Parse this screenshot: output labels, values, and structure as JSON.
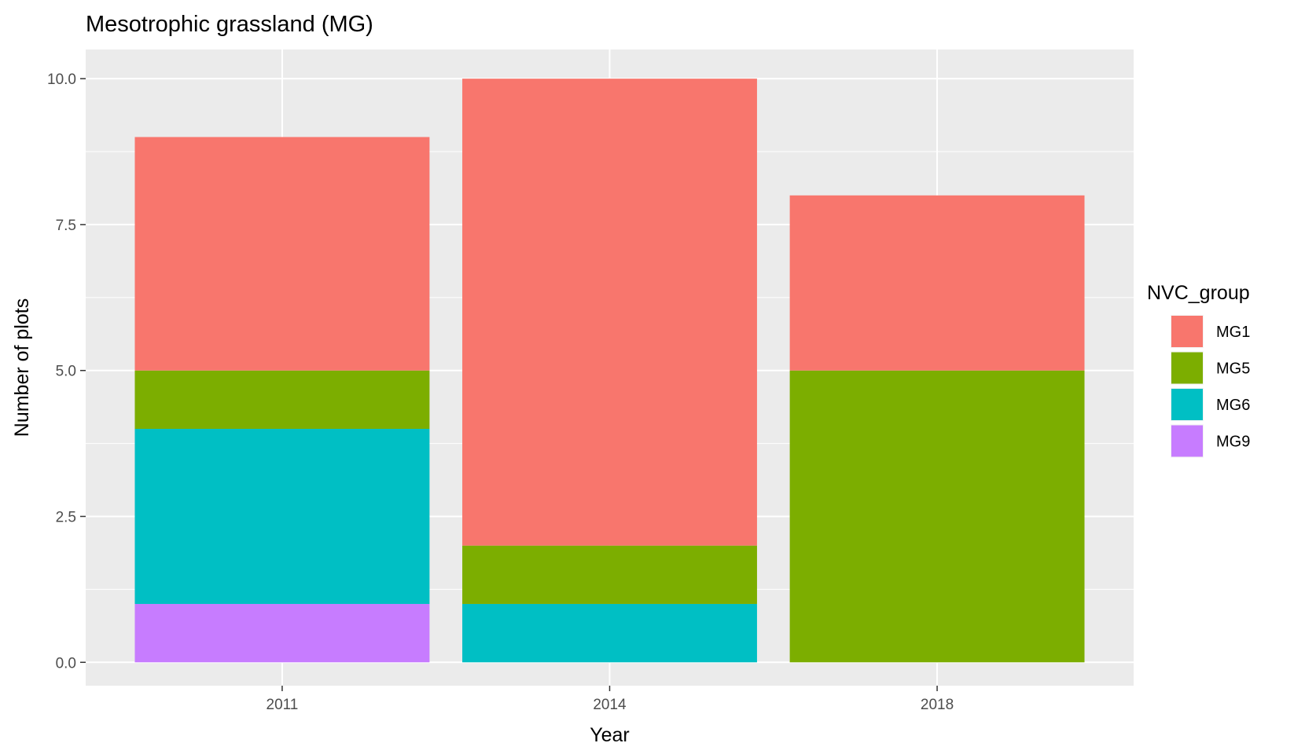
{
  "chart_data": {
    "type": "bar",
    "stacked": true,
    "title": "Mesotrophic grassland (MG)",
    "xlabel": "Year",
    "ylabel": "Number of plots",
    "categories": [
      "2011",
      "2014",
      "2018"
    ],
    "ylim": [
      -0.4,
      10.5
    ],
    "yticks": [
      0,
      2.5,
      5,
      7.5,
      10
    ],
    "ytick_labels": [
      "0.0",
      "2.5",
      "5.0",
      "7.5",
      "10.0"
    ],
    "grid": true,
    "legend": {
      "title": "NVC_group",
      "position": "right",
      "entries": [
        "MG1",
        "MG5",
        "MG6",
        "MG9"
      ]
    },
    "series": [
      {
        "name": "MG1",
        "color": "#F8766D",
        "values": [
          4,
          8,
          3
        ]
      },
      {
        "name": "MG5",
        "color": "#7CAE00",
        "values": [
          1,
          1,
          5
        ]
      },
      {
        "name": "MG6",
        "color": "#00BFC4",
        "values": [
          3,
          1,
          0
        ]
      },
      {
        "name": "MG9",
        "color": "#C77CFF",
        "values": [
          1,
          0,
          0
        ]
      }
    ],
    "colors": {
      "panel_background": "#EBEBEB",
      "grid_major": "#FFFFFF",
      "tick_text": "#4D4D4D"
    }
  }
}
